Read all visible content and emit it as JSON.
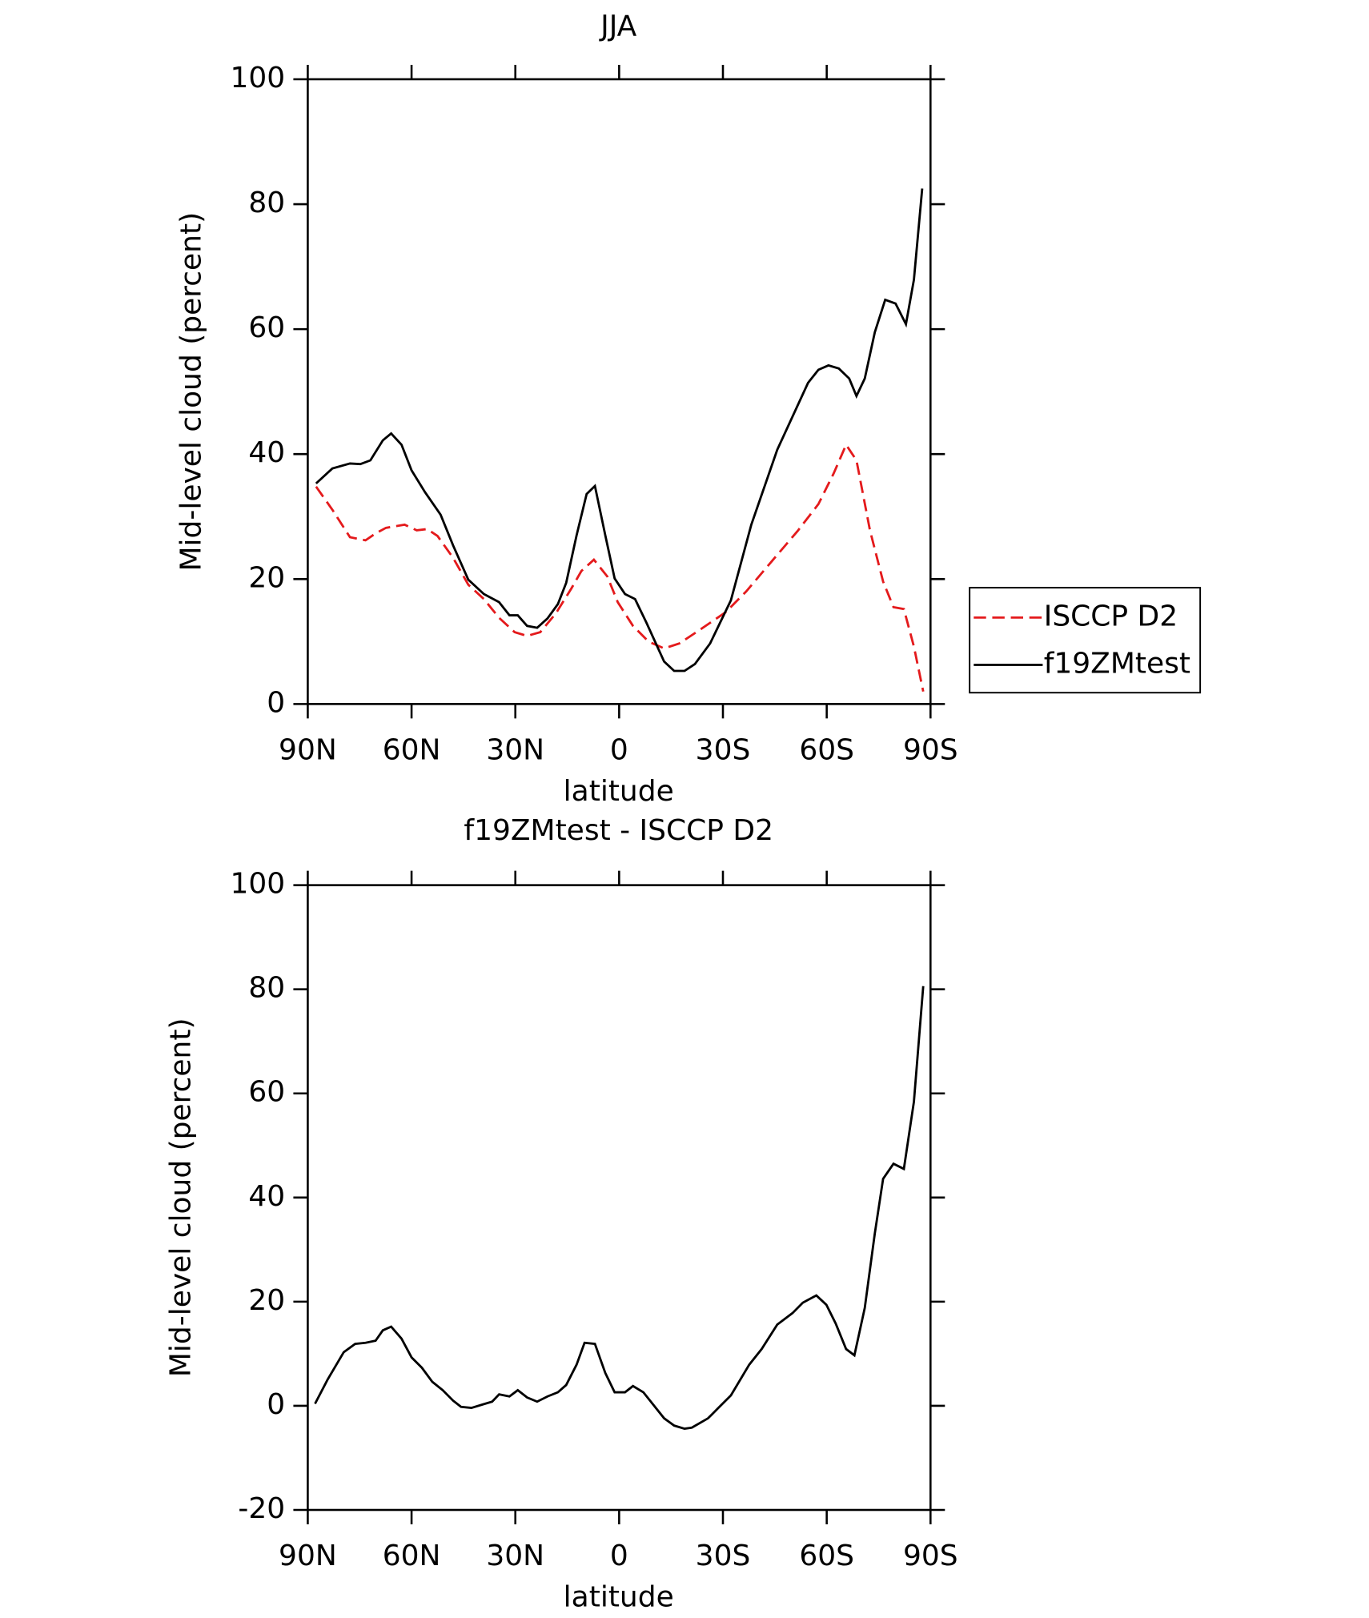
{
  "chart_data": [
    {
      "type": "line",
      "title": "JJA",
      "xlabel": "latitude",
      "ylabel": "Mid-level cloud (percent)",
      "xlim": [
        90,
        -90
      ],
      "xticks": [
        {
          "value": 90,
          "label": "90N"
        },
        {
          "value": 60,
          "label": "60N"
        },
        {
          "value": 30,
          "label": "30N"
        },
        0,
        {
          "value": -30,
          "label": "30S"
        },
        {
          "value": -60,
          "label": "60S"
        },
        {
          "value": -90,
          "label": "90S"
        }
      ],
      "ylim": [
        0,
        100
      ],
      "yticks": [
        0,
        20,
        40,
        60,
        80,
        100
      ],
      "legend": "right",
      "series": [
        {
          "name": "ISCCP D2",
          "color": "#e41a1c",
          "dash": true,
          "x": [
            87.6,
            82.9,
            77.8,
            73.3,
            70.4,
            67.4,
            62.0,
            58.5,
            55.5,
            52.5,
            48.0,
            43.6,
            39.1,
            34.7,
            30.2,
            26.6,
            22.8,
            18.3,
            13.8,
            10.9,
            7.3,
            3.4,
            0.4,
            -4.0,
            -8.5,
            -13.0,
            -17.4,
            -23.4,
            -30.8,
            -36.7,
            -44.2,
            -51.6,
            -57.6,
            -62.0,
            -65.6,
            -68.6,
            -72.5,
            -76.3,
            -79.3,
            -82.3,
            -85.2,
            -87.9
          ],
          "values": [
            34.8,
            31.1,
            26.7,
            26.2,
            27.3,
            28.2,
            28.7,
            27.8,
            28.0,
            26.9,
            23.4,
            19.1,
            16.8,
            13.8,
            11.5,
            10.9,
            11.5,
            14.5,
            18.5,
            21.3,
            23.1,
            20.4,
            16.3,
            12.5,
            10.0,
            8.9,
            9.7,
            11.9,
            14.7,
            18.0,
            22.9,
            27.7,
            32.0,
            36.9,
            41.5,
            39.0,
            27.8,
            19.6,
            15.5,
            15.2,
            9.2,
            2.0
          ]
        },
        {
          "name": "f19ZMtest",
          "color": "#000000",
          "dash": false,
          "x": [
            87.6,
            82.9,
            77.8,
            74.8,
            71.9,
            68.3,
            65.9,
            62.9,
            60.0,
            56.1,
            51.6,
            48.0,
            43.6,
            39.1,
            34.7,
            31.7,
            29.3,
            26.6,
            23.7,
            20.7,
            17.7,
            15.3,
            12.3,
            9.4,
            7.0,
            4.0,
            1.3,
            -1.7,
            -4.6,
            -7.9,
            -13.0,
            -15.9,
            -18.9,
            -21.9,
            -26.3,
            -32.3,
            -38.2,
            -45.7,
            -54.6,
            -57.6,
            -60.5,
            -63.5,
            -66.5,
            -68.6,
            -71.0,
            -73.9,
            -76.9,
            -79.9,
            -82.9,
            -85.2,
            -87.6
          ],
          "values": [
            35.3,
            37.7,
            38.5,
            38.4,
            39.0,
            42.2,
            43.3,
            41.5,
            37.4,
            33.9,
            30.3,
            25.4,
            19.9,
            17.6,
            16.3,
            14.2,
            14.2,
            12.5,
            12.2,
            13.7,
            16.0,
            19.4,
            27.0,
            33.6,
            34.9,
            27.0,
            20.1,
            17.6,
            16.8,
            13.0,
            6.8,
            5.3,
            5.3,
            6.4,
            9.7,
            16.6,
            28.7,
            40.7,
            51.4,
            53.5,
            54.2,
            53.7,
            52.1,
            49.3,
            52.1,
            59.5,
            64.7,
            64.1,
            60.8,
            67.9,
            82.5
          ]
        }
      ]
    },
    {
      "type": "line",
      "title": "f19ZMtest - ISCCP D2",
      "xlabel": "latitude",
      "ylabel": "Mid-level cloud (percent)",
      "xlim": [
        90,
        -90
      ],
      "xticks": [
        {
          "value": 90,
          "label": "90N"
        },
        {
          "value": 60,
          "label": "60N"
        },
        {
          "value": 30,
          "label": "30N"
        },
        0,
        {
          "value": -30,
          "label": "30S"
        },
        {
          "value": -60,
          "label": "60S"
        },
        {
          "value": -90,
          "label": "90S"
        }
      ],
      "ylim": [
        -20,
        100
      ],
      "yticks": [
        -20,
        0,
        20,
        40,
        60,
        80,
        100
      ],
      "series": [
        {
          "color": "#000000",
          "dash": false,
          "x": [
            87.9,
            84.3,
            79.6,
            76.3,
            73.3,
            70.4,
            68.3,
            65.9,
            62.9,
            60.0,
            57.0,
            54.0,
            51.0,
            48.0,
            45.7,
            42.7,
            39.7,
            36.7,
            34.7,
            31.7,
            29.3,
            26.6,
            23.7,
            20.7,
            17.7,
            15.3,
            12.3,
            10.0,
            7.0,
            4.0,
            1.3,
            -1.7,
            -4.0,
            -7.0,
            -13.0,
            -15.9,
            -18.9,
            -21.0,
            -25.7,
            -28.7,
            -32.3,
            -37.6,
            -41.2,
            -45.7,
            -50.1,
            -53.1,
            -57.0,
            -59.9,
            -62.6,
            -65.6,
            -68.0,
            -71.0,
            -73.9,
            -76.3,
            -79.3,
            -82.3,
            -85.2,
            -87.9
          ],
          "values": [
            0.4,
            5.0,
            10.3,
            11.9,
            12.1,
            12.5,
            14.5,
            15.2,
            12.9,
            9.3,
            7.3,
            4.6,
            3.0,
            1.0,
            -0.2,
            -0.4,
            0.2,
            0.8,
            2.2,
            1.8,
            3.0,
            1.6,
            0.8,
            1.8,
            2.6,
            4.0,
            7.9,
            12.1,
            11.9,
            6.3,
            2.6,
            2.6,
            3.8,
            2.6,
            -2.4,
            -3.8,
            -4.4,
            -4.2,
            -2.4,
            -0.4,
            2.0,
            7.9,
            10.9,
            15.6,
            17.8,
            19.8,
            21.2,
            19.4,
            15.8,
            10.9,
            9.7,
            18.8,
            33.1,
            43.6,
            46.5,
            45.5,
            58.4,
            80.6
          ]
        }
      ]
    }
  ]
}
